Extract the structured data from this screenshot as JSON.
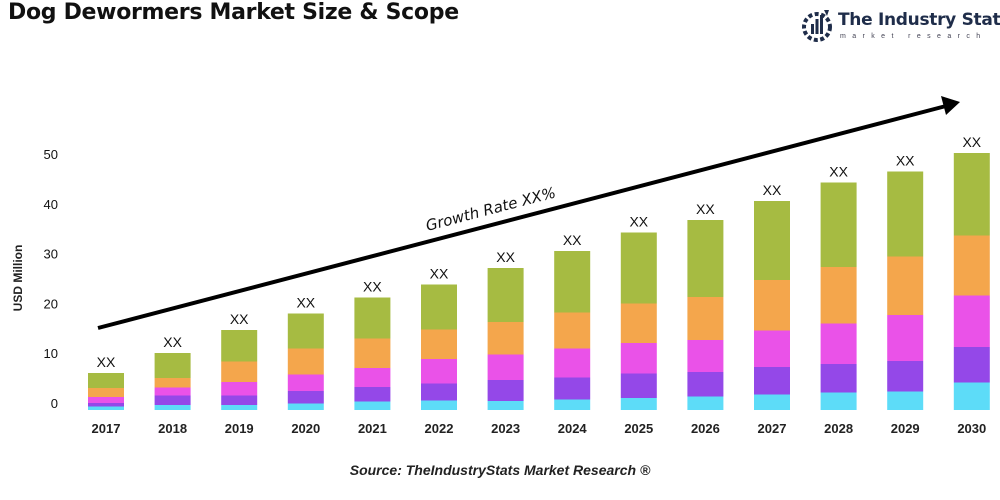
{
  "title": "Dog Dewormers Market Size & Scope",
  "logo": {
    "name": "The Industry Stats",
    "tagline": "market research",
    "icon": "gear-chart-icon"
  },
  "source": "Source: TheIndustryStats Market Research ®",
  "chart_data": {
    "type": "bar",
    "stacked": true,
    "title": "",
    "xlabel": "",
    "ylabel": "USD Million",
    "ylim": [
      0,
      50
    ],
    "yticks": [
      0,
      10,
      20,
      30,
      40,
      50
    ],
    "grid": false,
    "legend": "none",
    "categories": [
      "2017",
      "2018",
      "2019",
      "2020",
      "2021",
      "2022",
      "2023",
      "2024",
      "2025",
      "2026",
      "2027",
      "2028",
      "2029",
      "2030"
    ],
    "bar_labels": [
      "XX",
      "XX",
      "XX",
      "XX",
      "XX",
      "XX",
      "XX",
      "XX",
      "XX",
      "XX",
      "XX",
      "XX",
      "XX",
      "XX"
    ],
    "series": [
      {
        "color": "#5ddcf8",
        "values": [
          0.7,
          1.0,
          1.0,
          1.3,
          1.7,
          1.9,
          1.8,
          2.1,
          2.4,
          2.7,
          3.1,
          3.5,
          3.7,
          5.5
        ]
      },
      {
        "color": "#9448e8",
        "values": [
          0.7,
          1.9,
          1.9,
          2.5,
          2.9,
          3.4,
          4.2,
          4.4,
          4.9,
          4.9,
          5.5,
          5.7,
          6.1,
          7.1
        ]
      },
      {
        "color": "#ea52e8",
        "values": [
          1.2,
          1.6,
          2.7,
          3.3,
          3.8,
          4.9,
          5.1,
          5.8,
          6.1,
          6.4,
          7.3,
          8.1,
          9.2,
          10.3
        ]
      },
      {
        "color": "#f4a64c",
        "values": [
          1.8,
          1.9,
          4.1,
          5.2,
          5.9,
          5.9,
          6.5,
          7.2,
          7.9,
          8.6,
          10.1,
          11.3,
          11.7,
          12.0
        ]
      },
      {
        "color": "#a6bb42",
        "values": [
          3.0,
          5.0,
          6.3,
          7.0,
          8.2,
          9.0,
          10.8,
          12.3,
          14.2,
          15.4,
          15.8,
          16.9,
          17.0,
          16.5
        ]
      }
    ],
    "annotation": {
      "text": "Growth Rate XX%",
      "arrow": "increasing trend arrow"
    }
  }
}
